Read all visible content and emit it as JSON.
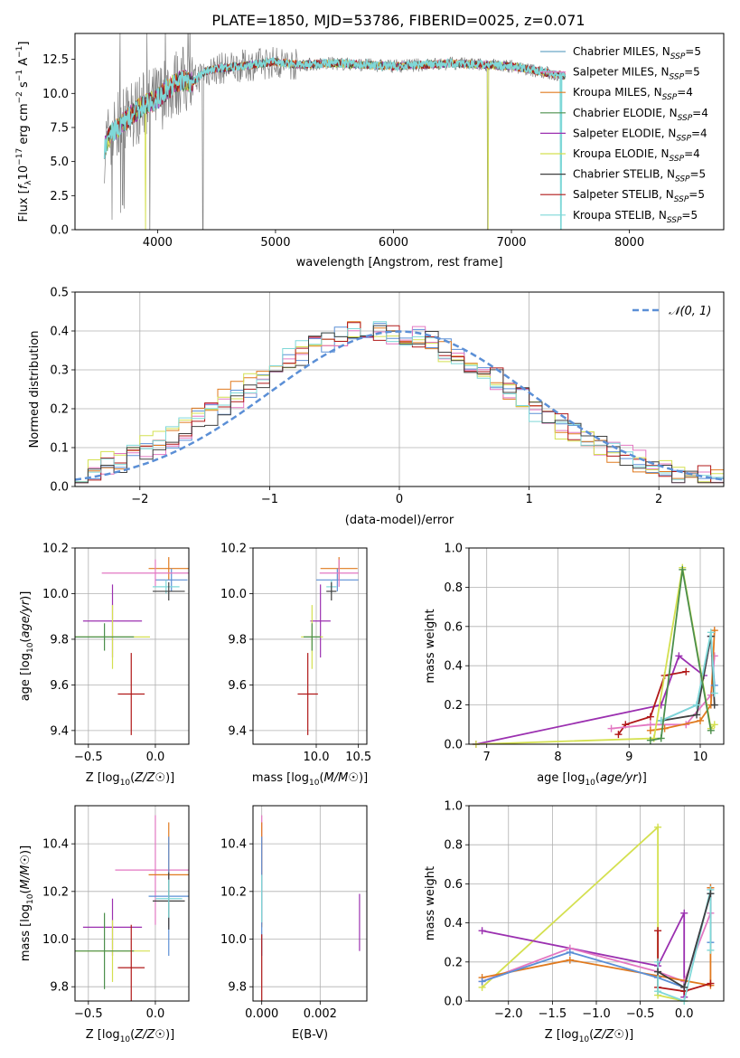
{
  "figure": {
    "title": "PLATE=1850, MJD=53786, FIBERID=0025, z=0.071"
  },
  "chart_data": [
    {
      "id": "spectrum",
      "type": "line",
      "xlabel": "wavelength [Angstrom, rest frame]",
      "ylabel_parts": [
        "Flux [",
        "f",
        "λ",
        "10",
        "−17",
        " erg cm",
        "−2",
        " s",
        "−1",
        " A",
        "−1",
        "]"
      ],
      "xlim": [
        3300,
        8800
      ],
      "ylim": [
        0,
        14.4
      ],
      "xticks": [
        4000,
        5000,
        6000,
        7000,
        8000
      ],
      "yticks": [
        0.0,
        2.5,
        5.0,
        7.5,
        10.0,
        12.5
      ],
      "ytick_labels": [
        "0.0",
        "2.5",
        "5.0",
        "7.5",
        "10.0",
        "12.5"
      ],
      "grid": false,
      "legend_position": "right",
      "observed_color": "#808080",
      "model_envelope": [
        [
          3550,
          6.0
        ],
        [
          3600,
          7.0
        ],
        [
          3700,
          7.8
        ],
        [
          3800,
          8.6
        ],
        [
          3900,
          9.2
        ],
        [
          4000,
          9.6
        ],
        [
          4100,
          10.4
        ],
        [
          4200,
          11.0
        ],
        [
          4300,
          10.8
        ],
        [
          4400,
          11.6
        ],
        [
          4500,
          11.8
        ],
        [
          4700,
          12.0
        ],
        [
          5000,
          12.3
        ],
        [
          5200,
          12.1
        ],
        [
          5500,
          12.2
        ],
        [
          6000,
          12.0
        ],
        [
          6500,
          12.2
        ],
        [
          7000,
          12.0
        ],
        [
          7300,
          11.5
        ],
        [
          7500,
          11.2
        ]
      ],
      "series": [
        {
          "name_parts": [
            "Chabrier MILES, N",
            "SSP",
            "=5"
          ],
          "color": "#6ba8c8"
        },
        {
          "name_parts": [
            "Salpeter MILES, N",
            "SSP",
            "=5"
          ],
          "color": "#e377c2"
        },
        {
          "name_parts": [
            "Kroupa MILES, N",
            "SSP",
            "=4"
          ],
          "color": "#e07a1f"
        },
        {
          "name_parts": [
            "Chabrier ELODIE, N",
            "SSP",
            "=4"
          ],
          "color": "#4c8f4c"
        },
        {
          "name_parts": [
            "Salpeter ELODIE, N",
            "SSP",
            "=4"
          ],
          "color": "#9b30b0"
        },
        {
          "name_parts": [
            "Kroupa ELODIE, N",
            "SSP",
            "=4"
          ],
          "color": "#d4e050"
        },
        {
          "name_parts": [
            "Chabrier STELIB, N",
            "SSP",
            "=5"
          ],
          "color": "#404040"
        },
        {
          "name_parts": [
            "Salpeter STELIB, N",
            "SSP",
            "=5"
          ],
          "color": "#b01818"
        },
        {
          "name_parts": [
            "Kroupa STELIB, N",
            "SSP",
            "=5"
          ],
          "color": "#7fd8d8"
        }
      ]
    },
    {
      "id": "residuals",
      "type": "area",
      "xlabel": "(data-model)/error",
      "ylabel": "Normed distribution",
      "xlim": [
        -2.5,
        2.5
      ],
      "ylim": [
        0,
        0.5
      ],
      "xticks": [
        -2,
        -1,
        0,
        1,
        2
      ],
      "xtick_labels": [
        "−2",
        "−1",
        "0",
        "1",
        "2"
      ],
      "yticks": [
        0.0,
        0.1,
        0.2,
        0.3,
        0.4,
        0.5
      ],
      "ytick_labels": [
        "0.0",
        "0.1",
        "0.2",
        "0.3",
        "0.4",
        "0.5"
      ],
      "grid": true,
      "legend_position": "top-right",
      "gaussian_label": "𝒩(0, 1)",
      "gaussian_color": "#5b8fd6",
      "bin_width": 0.1,
      "hist_colors": [
        "#5b8fd6",
        "#e07a1f",
        "#e377c2",
        "#d4e050",
        "#b01818",
        "#7fd8d8",
        "#404040"
      ]
    },
    {
      "id": "age_vs_Z",
      "type": "scatter",
      "xlabel": "Z [log10(Z/Z☉)]",
      "ylabel": "age  [log10(age/yr)]",
      "xlim": [
        -0.6,
        0.25
      ],
      "ylim": [
        9.34,
        10.2
      ],
      "xticks": [
        -0.5,
        0.0
      ],
      "xtick_labels": [
        "−0.5",
        "0.0"
      ],
      "yticks": [
        9.4,
        9.6,
        9.8,
        10.0,
        10.2
      ],
      "ytick_labels": [
        "9.4",
        "9.6",
        "9.8",
        "10.0",
        "10.2"
      ],
      "grid": true,
      "points": [
        {
          "x": 0.1,
          "xerr": 0.15,
          "y": 10.11,
          "yerr": 0.05,
          "color": "#e07a1f"
        },
        {
          "x": 0.12,
          "xerr": 0.12,
          "y": 10.06,
          "yerr": 0.05,
          "color": "#5b8fd6"
        },
        {
          "x": 0.0,
          "xerr": 0.4,
          "y": 10.09,
          "yerr": 0.06,
          "color": "#e377c2"
        },
        {
          "x": 0.08,
          "xerr": 0.1,
          "y": 10.03,
          "yerr": 0.03,
          "color": "#7fd8d8"
        },
        {
          "x": 0.1,
          "xerr": 0.12,
          "y": 10.01,
          "yerr": 0.04,
          "color": "#404040"
        },
        {
          "x": -0.32,
          "xerr": 0.22,
          "y": 9.88,
          "yerr": 0.16,
          "color": "#9b30b0"
        },
        {
          "x": -0.32,
          "xerr": 0.28,
          "y": 9.81,
          "yerr": 0.14,
          "color": "#d4e050"
        },
        {
          "x": -0.38,
          "xerr": 0.22,
          "y": 9.81,
          "yerr": 0.06,
          "color": "#4c8f4c"
        },
        {
          "x": -0.18,
          "xerr": 0.1,
          "y": 9.56,
          "yerr": 0.18,
          "color": "#b01818"
        }
      ]
    },
    {
      "id": "age_vs_mass",
      "type": "scatter",
      "xlabel": "mass [log10(M/M☉)]",
      "ylabel": "",
      "xlim": [
        9.25,
        10.6
      ],
      "ylim": [
        9.34,
        10.2
      ],
      "xticks": [
        10.0,
        10.5
      ],
      "xtick_labels": [
        "10.0",
        "10.5"
      ],
      "yticks": [
        9.4,
        9.6,
        9.8,
        10.0,
        10.2
      ],
      "ytick_labels": [
        "9.4",
        "9.6",
        "9.8",
        "10.0",
        "10.2"
      ],
      "grid": true,
      "points": [
        {
          "x": 10.27,
          "xerr": 0.22,
          "y": 10.11,
          "yerr": 0.05,
          "color": "#e07a1f"
        },
        {
          "x": 10.25,
          "xerr": 0.25,
          "y": 10.06,
          "yerr": 0.05,
          "color": "#5b8fd6"
        },
        {
          "x": 10.27,
          "xerr": 0.23,
          "y": 10.09,
          "yerr": 0.06,
          "color": "#e377c2"
        },
        {
          "x": 10.18,
          "xerr": 0.06,
          "y": 10.03,
          "yerr": 0.03,
          "color": "#7fd8d8"
        },
        {
          "x": 10.18,
          "xerr": 0.06,
          "y": 10.01,
          "yerr": 0.04,
          "color": "#404040"
        },
        {
          "x": 10.05,
          "xerr": 0.12,
          "y": 9.88,
          "yerr": 0.16,
          "color": "#9b30b0"
        },
        {
          "x": 9.95,
          "xerr": 0.13,
          "y": 9.81,
          "yerr": 0.14,
          "color": "#d4e050"
        },
        {
          "x": 9.95,
          "xerr": 0.1,
          "y": 9.81,
          "yerr": 0.06,
          "color": "#4c8f4c"
        },
        {
          "x": 9.9,
          "xerr": 0.12,
          "y": 9.56,
          "yerr": 0.18,
          "color": "#b01818"
        }
      ]
    },
    {
      "id": "weight_vs_age",
      "type": "line",
      "xlabel": "age  [log10(age/yr)]",
      "ylabel": "mass weight",
      "xlim": [
        6.75,
        10.33
      ],
      "ylim": [
        0,
        1
      ],
      "xticks": [
        7,
        8,
        9,
        10
      ],
      "xtick_labels": [
        "7",
        "8",
        "9",
        "10"
      ],
      "yticks": [
        0.0,
        0.2,
        0.4,
        0.6,
        0.8,
        1.0
      ],
      "ytick_labels": [
        "0.0",
        "0.2",
        "0.4",
        "0.6",
        "0.8",
        "1.0"
      ],
      "grid": true,
      "series": [
        {
          "color": "#9b30b0",
          "x": [
            6.85,
            9.45,
            9.7,
            10.05,
            10.15
          ],
          "y": [
            0.0,
            0.2,
            0.45,
            0.35,
            0.55
          ]
        },
        {
          "color": "#b01818",
          "x": [
            8.85,
            8.95,
            9.3,
            9.5,
            9.8
          ],
          "y": [
            0.05,
            0.1,
            0.14,
            0.35,
            0.37
          ]
        },
        {
          "color": "#e377c2",
          "x": [
            8.75,
            9.3,
            9.8,
            10.15,
            10.2
          ],
          "y": [
            0.08,
            0.1,
            0.1,
            0.25,
            0.45
          ]
        },
        {
          "color": "#e07a1f",
          "x": [
            9.3,
            9.5,
            10.0,
            10.15,
            10.2
          ],
          "y": [
            0.07,
            0.08,
            0.12,
            0.2,
            0.58
          ]
        },
        {
          "color": "#5b8fd6",
          "x": [
            9.45,
            9.95,
            10.15,
            10.2
          ],
          "y": [
            0.12,
            0.2,
            0.55,
            0.3
          ]
        },
        {
          "color": "#404040",
          "x": [
            9.45,
            9.95,
            10.15,
            10.2
          ],
          "y": [
            0.12,
            0.15,
            0.55,
            0.2
          ]
        },
        {
          "color": "#7fd8d8",
          "x": [
            9.45,
            9.95,
            10.15,
            10.2
          ],
          "y": [
            0.12,
            0.2,
            0.57,
            0.26
          ]
        },
        {
          "color": "#d4e050",
          "x": [
            6.85,
            9.35,
            9.75,
            10.15,
            10.2
          ],
          "y": [
            0.0,
            0.03,
            0.9,
            0.08,
            0.1
          ]
        },
        {
          "color": "#4c8f4c",
          "x": [
            9.3,
            9.45,
            9.75,
            10.15
          ],
          "y": [
            0.02,
            0.03,
            0.89,
            0.07
          ]
        }
      ]
    },
    {
      "id": "mass_vs_Z",
      "type": "scatter",
      "xlabel": "Z [log10(Z/Z☉)]",
      "ylabel": "mass [log10(M/M☉)]",
      "xlim": [
        -0.6,
        0.25
      ],
      "ylim": [
        9.74,
        10.56
      ],
      "xticks": [
        -0.5,
        0.0
      ],
      "xtick_labels": [
        "−0.5",
        "0.0"
      ],
      "yticks": [
        9.8,
        10.0,
        10.2,
        10.4
      ],
      "ytick_labels": [
        "9.8",
        "10.0",
        "10.2",
        "10.4"
      ],
      "grid": true,
      "points": [
        {
          "x": 0.0,
          "xerr": 0.3,
          "y": 10.29,
          "yerr": 0.23,
          "color": "#e377c2"
        },
        {
          "x": 0.1,
          "xerr": 0.15,
          "y": 10.27,
          "yerr": 0.22,
          "color": "#e07a1f"
        },
        {
          "x": 0.1,
          "xerr": 0.15,
          "y": 10.18,
          "yerr": 0.25,
          "color": "#5b8fd6"
        },
        {
          "x": 0.1,
          "xerr": 0.12,
          "y": 10.16,
          "yerr": 0.12,
          "color": "#404040"
        },
        {
          "x": 0.1,
          "xerr": 0.1,
          "y": 10.17,
          "yerr": 0.08,
          "color": "#7fd8d8"
        },
        {
          "x": -0.32,
          "xerr": 0.22,
          "y": 10.05,
          "yerr": 0.12,
          "color": "#9b30b0"
        },
        {
          "x": -0.32,
          "xerr": 0.28,
          "y": 9.95,
          "yerr": 0.13,
          "color": "#d4e050"
        },
        {
          "x": -0.38,
          "xerr": 0.22,
          "y": 9.95,
          "yerr": 0.16,
          "color": "#4c8f4c"
        },
        {
          "x": -0.18,
          "xerr": 0.1,
          "y": 9.88,
          "yerr": 0.18,
          "color": "#b01818"
        }
      ]
    },
    {
      "id": "mass_vs_EBV",
      "type": "scatter",
      "xlabel": "E(B-V)",
      "ylabel": "",
      "xlim": [
        -0.0003,
        0.0036
      ],
      "ylim": [
        9.74,
        10.56
      ],
      "xticks": [
        0.0,
        0.002
      ],
      "xtick_labels": [
        "0.000",
        "0.002"
      ],
      "yticks": [
        9.8,
        10.0,
        10.2,
        10.4
      ],
      "ytick_labels": [
        "9.8",
        "10.0",
        "10.2",
        "10.4"
      ],
      "grid": true,
      "points": [
        {
          "x": 0.0,
          "xerr": 0,
          "y": 10.29,
          "yerr": 0.23,
          "color": "#e377c2"
        },
        {
          "x": 0.0,
          "xerr": 0,
          "y": 10.27,
          "yerr": 0.22,
          "color": "#e07a1f"
        },
        {
          "x": 0.0,
          "xerr": 0,
          "y": 10.18,
          "yerr": 0.25,
          "color": "#5b8fd6"
        },
        {
          "x": 0.0,
          "xerr": 0,
          "y": 10.17,
          "yerr": 0.1,
          "color": "#7fd8d8"
        },
        {
          "x": 0.0,
          "xerr": 0,
          "y": 9.88,
          "yerr": 0.14,
          "color": "#b01818"
        },
        {
          "x": 0.00335,
          "xerr": 0,
          "y": 10.07,
          "yerr": 0.12,
          "color": "#9b30b0"
        }
      ]
    },
    {
      "id": "weight_vs_Z",
      "type": "line",
      "xlabel": "Z [log10(Z/Z☉)]",
      "ylabel": "mass weight",
      "xlim": [
        -2.45,
        0.45
      ],
      "ylim": [
        0,
        1
      ],
      "xticks": [
        -2.0,
        -1.5,
        -1.0,
        -0.5,
        0.0
      ],
      "xtick_labels": [
        "−2.0",
        "−1.5",
        "−1.0",
        "−0.5",
        "0.0"
      ],
      "yticks": [
        0.0,
        0.2,
        0.4,
        0.6,
        0.8,
        1.0
      ],
      "ytick_labels": [
        "0.0",
        "0.2",
        "0.4",
        "0.6",
        "0.8",
        "1.0"
      ],
      "grid": true,
      "series": [
        {
          "color": "#d4e050",
          "x": [
            -2.3,
            -0.3,
            -0.3,
            0.0
          ],
          "y": [
            0.07,
            0.89,
            0.03,
            0.0
          ]
        },
        {
          "color": "#9b30b0",
          "x": [
            -2.3,
            -0.3,
            0.0,
            0.0
          ],
          "y": [
            0.36,
            0.18,
            0.45,
            0.02
          ]
        },
        {
          "color": "#e377c2",
          "x": [
            -2.3,
            -1.3,
            -0.3,
            0.0,
            0.3,
            0.3
          ],
          "y": [
            0.1,
            0.27,
            0.15,
            0.1,
            0.45,
            0.58
          ]
        },
        {
          "color": "#e07a1f",
          "x": [
            -2.3,
            -1.3,
            0.3,
            0.3
          ],
          "y": [
            0.12,
            0.21,
            0.08,
            0.58
          ]
        },
        {
          "color": "#5b8fd6",
          "x": [
            -2.3,
            -1.3,
            -0.3,
            0.0,
            0.3,
            0.3
          ],
          "y": [
            0.1,
            0.25,
            0.12,
            0.07,
            0.55,
            0.3
          ]
        },
        {
          "color": "#b01818",
          "x": [
            -0.3,
            -0.3,
            0.0,
            0.3
          ],
          "y": [
            0.36,
            0.07,
            0.05,
            0.09
          ]
        },
        {
          "color": "#7fd8d8",
          "x": [
            -0.3,
            -0.3,
            0.0,
            0.3,
            0.3
          ],
          "y": [
            0.2,
            0.05,
            0.0,
            0.57,
            0.26
          ]
        },
        {
          "color": "#404040",
          "x": [
            -0.3,
            0.0,
            0.3
          ],
          "y": [
            0.15,
            0.07,
            0.55
          ]
        }
      ]
    }
  ]
}
